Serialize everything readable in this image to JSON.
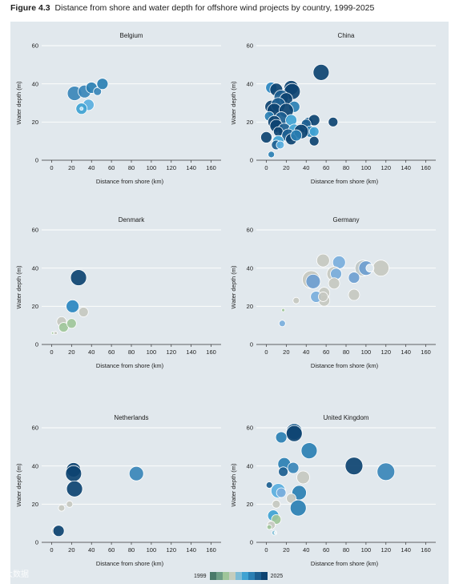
{
  "figure": {
    "label": "Figure 4.3",
    "title": "Distance from shore and water depth for offshore wind projects by country, 1999-2025"
  },
  "legend": {
    "start_label": "1999",
    "end_label": "2025",
    "colors": [
      "#4a7a6a",
      "#6e9e86",
      "#9fc59a",
      "#c5cdbd",
      "#7dbcd6",
      "#3fa2d2",
      "#2a7fb3",
      "#1c5e90",
      "#0d4371"
    ]
  },
  "watermark": "大数据",
  "chart_data": [
    {
      "type": "scatter",
      "title": "Belgium",
      "xlabel": "Distance from shore (km)",
      "ylabel": "Water depth (m)",
      "xlim": [
        -10,
        170
      ],
      "ylim": [
        0,
        60
      ],
      "xticks": [
        0,
        20,
        40,
        60,
        80,
        100,
        120,
        140,
        160
      ],
      "yticks": [
        0,
        20,
        40,
        60
      ],
      "grid": "horizontal",
      "points": [
        {
          "x": 23,
          "y": 35,
          "size": 9,
          "color": "#3a85b8"
        },
        {
          "x": 33,
          "y": 36,
          "size": 8,
          "color": "#3a85b8"
        },
        {
          "x": 40,
          "y": 38,
          "size": 7,
          "color": "#2a7fb3"
        },
        {
          "x": 46,
          "y": 36,
          "size": 5,
          "color": "#3a85b8"
        },
        {
          "x": 51,
          "y": 40,
          "size": 7,
          "color": "#2a7fb3"
        },
        {
          "x": 37,
          "y": 29,
          "size": 7,
          "color": "#5aaede"
        },
        {
          "x": 30,
          "y": 27,
          "size": 7,
          "color": "#3fa2d2"
        },
        {
          "x": 30,
          "y": 27,
          "size": 2,
          "color": "#bfe3f5"
        }
      ]
    },
    {
      "type": "scatter",
      "title": "China",
      "xlabel": "Distance from shore (km)",
      "ylabel": "Water depth (m)",
      "xlim": [
        -10,
        170
      ],
      "ylim": [
        0,
        60
      ],
      "xticks": [
        0,
        20,
        40,
        60,
        80,
        100,
        120,
        140,
        160
      ],
      "yticks": [
        0,
        20,
        40,
        60
      ],
      "grid": "horizontal",
      "points": [
        {
          "x": 55,
          "y": 46,
          "size": 10,
          "color": "#0d4371"
        },
        {
          "x": 5,
          "y": 38,
          "size": 7,
          "color": "#2a85c0"
        },
        {
          "x": 10,
          "y": 37,
          "size": 8,
          "color": "#0d4371"
        },
        {
          "x": 25,
          "y": 38,
          "size": 9,
          "color": "#0d4371"
        },
        {
          "x": 26,
          "y": 36,
          "size": 10,
          "color": "#0d4371"
        },
        {
          "x": 15,
          "y": 33,
          "size": 9,
          "color": "#1c5e90"
        },
        {
          "x": 20,
          "y": 32,
          "size": 8,
          "color": "#0d4371"
        },
        {
          "x": 5,
          "y": 28,
          "size": 8,
          "color": "#0d4371"
        },
        {
          "x": 12,
          "y": 29,
          "size": 9,
          "color": "#1c5e90"
        },
        {
          "x": 28,
          "y": 28,
          "size": 7,
          "color": "#2a7fb3"
        },
        {
          "x": 8,
          "y": 26,
          "size": 9,
          "color": "#0d4371"
        },
        {
          "x": 20,
          "y": 26,
          "size": 9,
          "color": "#0d4371"
        },
        {
          "x": 3,
          "y": 23,
          "size": 6,
          "color": "#2a7fb3"
        },
        {
          "x": 15,
          "y": 22,
          "size": 8,
          "color": "#1c5e90"
        },
        {
          "x": 25,
          "y": 21,
          "size": 7,
          "color": "#3fa2d2"
        },
        {
          "x": 8,
          "y": 20,
          "size": 8,
          "color": "#0d4371"
        },
        {
          "x": 42,
          "y": 20,
          "size": 6,
          "color": "#1c5e90"
        },
        {
          "x": 48,
          "y": 21,
          "size": 7,
          "color": "#0d4371"
        },
        {
          "x": 67,
          "y": 20,
          "size": 6,
          "color": "#0d4371"
        },
        {
          "x": 10,
          "y": 18,
          "size": 8,
          "color": "#0d4371"
        },
        {
          "x": 18,
          "y": 16,
          "size": 8,
          "color": "#1c5e90"
        },
        {
          "x": 12,
          "y": 15,
          "size": 6,
          "color": "#0d4371"
        },
        {
          "x": 28,
          "y": 16,
          "size": 7,
          "color": "#3fa2d2"
        },
        {
          "x": 38,
          "y": 17,
          "size": 6,
          "color": "#2a7fb3"
        },
        {
          "x": 40,
          "y": 19,
          "size": 6,
          "color": "#1c5e90"
        },
        {
          "x": 44,
          "y": 15,
          "size": 7,
          "color": "#2a7fb3"
        },
        {
          "x": 35,
          "y": 15,
          "size": 9,
          "color": "#0d4371"
        },
        {
          "x": 48,
          "y": 15,
          "size": 6,
          "color": "#3fa2d2"
        },
        {
          "x": 0,
          "y": 12,
          "size": 7,
          "color": "#0d4371"
        },
        {
          "x": 22,
          "y": 13,
          "size": 8,
          "color": "#1c5e90"
        },
        {
          "x": 25,
          "y": 11,
          "size": 7,
          "color": "#0d4371"
        },
        {
          "x": 30,
          "y": 13,
          "size": 7,
          "color": "#2a7fb3"
        },
        {
          "x": 12,
          "y": 10,
          "size": 7,
          "color": "#3fa2d2"
        },
        {
          "x": 10,
          "y": 8,
          "size": 6,
          "color": "#1c5e90"
        },
        {
          "x": 14,
          "y": 8,
          "size": 5,
          "color": "#5aaede"
        },
        {
          "x": 48,
          "y": 10,
          "size": 6,
          "color": "#0d4371"
        },
        {
          "x": 5,
          "y": 3,
          "size": 4,
          "color": "#2a7fb3"
        }
      ]
    },
    {
      "type": "scatter",
      "title": "Denmark",
      "xlabel": "Distance from shore (km)",
      "ylabel": "Water depth (m)",
      "xlim": [
        -10,
        170
      ],
      "ylim": [
        0,
        60
      ],
      "xticks": [
        0,
        20,
        40,
        60,
        80,
        100,
        120,
        140,
        160
      ],
      "yticks": [
        0,
        20,
        40,
        60
      ],
      "grid": "horizontal",
      "points": [
        {
          "x": 27,
          "y": 35,
          "size": 10,
          "color": "#0d4371"
        },
        {
          "x": 21,
          "y": 20,
          "size": 8,
          "color": "#2a85c0"
        },
        {
          "x": 32,
          "y": 17,
          "size": 6,
          "color": "#c5c8c0"
        },
        {
          "x": 10,
          "y": 12,
          "size": 6,
          "color": "#c5c8c0"
        },
        {
          "x": 12,
          "y": 9,
          "size": 6,
          "color": "#9fc59a"
        },
        {
          "x": 20,
          "y": 11,
          "size": 6,
          "color": "#9fc59a"
        },
        {
          "x": 4,
          "y": 6,
          "size": 2,
          "color": "#c5c8c0"
        },
        {
          "x": 1,
          "y": 6,
          "size": 1.5,
          "color": "#9fc59a"
        }
      ]
    },
    {
      "type": "scatter",
      "title": "Germany",
      "xlabel": "Distance from shore (km)",
      "ylabel": "Water depth (m)",
      "xlim": [
        -10,
        170
      ],
      "ylim": [
        0,
        60
      ],
      "xticks": [
        0,
        20,
        40,
        60,
        80,
        100,
        120,
        140,
        160
      ],
      "yticks": [
        0,
        20,
        40,
        60
      ],
      "grid": "horizontal",
      "points": [
        {
          "x": 57,
          "y": 44,
          "size": 8,
          "color": "#c5c8c0"
        },
        {
          "x": 73,
          "y": 43,
          "size": 8,
          "color": "#7aaedc"
        },
        {
          "x": 97,
          "y": 40,
          "size": 10,
          "color": "#bfc7c6"
        },
        {
          "x": 100,
          "y": 40,
          "size": 9,
          "color": "#6e9ed0"
        },
        {
          "x": 115,
          "y": 40,
          "size": 10,
          "color": "#c5c8c0"
        },
        {
          "x": 104,
          "y": 40,
          "size": 5,
          "color": "#e6eef2"
        },
        {
          "x": 45,
          "y": 34,
          "size": 11,
          "color": "#c5c8c0"
        },
        {
          "x": 47,
          "y": 33,
          "size": 9,
          "color": "#6e9ed0"
        },
        {
          "x": 68,
          "y": 37,
          "size": 9,
          "color": "#c5c8c0"
        },
        {
          "x": 70,
          "y": 37,
          "size": 7,
          "color": "#7aaedc"
        },
        {
          "x": 88,
          "y": 35,
          "size": 7,
          "color": "#6e9ed0"
        },
        {
          "x": 68,
          "y": 32,
          "size": 7,
          "color": "#c5c8c0"
        },
        {
          "x": 58,
          "y": 27,
          "size": 7,
          "color": "#c5c8c0"
        },
        {
          "x": 58,
          "y": 23,
          "size": 7,
          "color": "#c5c8c0"
        },
        {
          "x": 50,
          "y": 25,
          "size": 7,
          "color": "#7aaedc"
        },
        {
          "x": 57,
          "y": 25,
          "size": 6,
          "color": "#c5c8c0"
        },
        {
          "x": 88,
          "y": 26,
          "size": 7,
          "color": "#c5c8c0"
        },
        {
          "x": 30,
          "y": 23,
          "size": 4,
          "color": "#c5c8c0"
        },
        {
          "x": 17,
          "y": 18,
          "size": 2,
          "color": "#9fc59a"
        },
        {
          "x": 16,
          "y": 11,
          "size": 4,
          "color": "#7aaedc"
        }
      ]
    },
    {
      "type": "scatter",
      "title": "Netherlands",
      "xlabel": "Distance from shore (km)",
      "ylabel": "Water depth (m)",
      "xlim": [
        -10,
        170
      ],
      "ylim": [
        0,
        60
      ],
      "xticks": [
        0,
        20,
        40,
        60,
        80,
        100,
        120,
        140,
        160
      ],
      "yticks": [
        0,
        20,
        40,
        60
      ],
      "grid": "horizontal",
      "points": [
        {
          "x": 22,
          "y": 38,
          "size": 9,
          "color": "#0d4371"
        },
        {
          "x": 22,
          "y": 36,
          "size": 10,
          "color": "#0d4371"
        },
        {
          "x": 85,
          "y": 36,
          "size": 9,
          "color": "#3a85b8"
        },
        {
          "x": 23,
          "y": 28,
          "size": 10,
          "color": "#0d4371"
        },
        {
          "x": 18,
          "y": 20,
          "size": 4,
          "color": "#c5c8c0"
        },
        {
          "x": 10,
          "y": 18,
          "size": 4,
          "color": "#c5c8c0"
        },
        {
          "x": 5,
          "y": 6,
          "size": 6,
          "color": "#c5c8c0"
        },
        {
          "x": 7,
          "y": 6,
          "size": 7,
          "color": "#0d4371"
        }
      ]
    },
    {
      "type": "scatter",
      "title": "United Kingdom",
      "xlabel": "Distance from shore (km)",
      "ylabel": "Water depth (m)",
      "xlim": [
        -10,
        170
      ],
      "ylim": [
        0,
        60
      ],
      "xticks": [
        0,
        20,
        40,
        60,
        80,
        100,
        120,
        140,
        160
      ],
      "yticks": [
        0,
        20,
        40,
        60
      ],
      "grid": "horizontal",
      "points": [
        {
          "x": 28,
          "y": 58,
          "size": 10,
          "color": "#1c5e90"
        },
        {
          "x": 28,
          "y": 57,
          "size": 10,
          "color": "#0d4371"
        },
        {
          "x": 15,
          "y": 55,
          "size": 7,
          "color": "#2a7fb3"
        },
        {
          "x": 43,
          "y": 48,
          "size": 10,
          "color": "#2a7fb3"
        },
        {
          "x": 18,
          "y": 41,
          "size": 8,
          "color": "#2a7fb3"
        },
        {
          "x": 27,
          "y": 39,
          "size": 7,
          "color": "#3a85b8"
        },
        {
          "x": 17,
          "y": 37,
          "size": 6,
          "color": "#1c5e90"
        },
        {
          "x": 88,
          "y": 40,
          "size": 11,
          "color": "#0d4371"
        },
        {
          "x": 120,
          "y": 37,
          "size": 11,
          "color": "#3a85b8"
        },
        {
          "x": 37,
          "y": 34,
          "size": 8,
          "color": "#c5c8c0"
        },
        {
          "x": 3,
          "y": 30,
          "size": 4,
          "color": "#1c5e90"
        },
        {
          "x": 12,
          "y": 27,
          "size": 9,
          "color": "#5aaede"
        },
        {
          "x": 15,
          "y": 26,
          "size": 6,
          "color": "#7aaedc"
        },
        {
          "x": 33,
          "y": 26,
          "size": 9,
          "color": "#2a7fb3"
        },
        {
          "x": 25,
          "y": 23,
          "size": 6,
          "color": "#c5c8c0"
        },
        {
          "x": 10,
          "y": 20,
          "size": 5,
          "color": "#c5c8c0"
        },
        {
          "x": 32,
          "y": 18,
          "size": 10,
          "color": "#2a7fb3"
        },
        {
          "x": 7,
          "y": 14,
          "size": 7,
          "color": "#3fa2d2"
        },
        {
          "x": 10,
          "y": 12,
          "size": 6,
          "color": "#9fc59a"
        },
        {
          "x": 5,
          "y": 9,
          "size": 5,
          "color": "#c5c8c0"
        },
        {
          "x": 3,
          "y": 8,
          "size": 3,
          "color": "#9fc59a"
        },
        {
          "x": 8,
          "y": 5,
          "size": 3,
          "color": "#7dbcd6"
        },
        {
          "x": 9,
          "y": 5,
          "size": 1.5,
          "color": "#e6eef2"
        }
      ]
    }
  ]
}
